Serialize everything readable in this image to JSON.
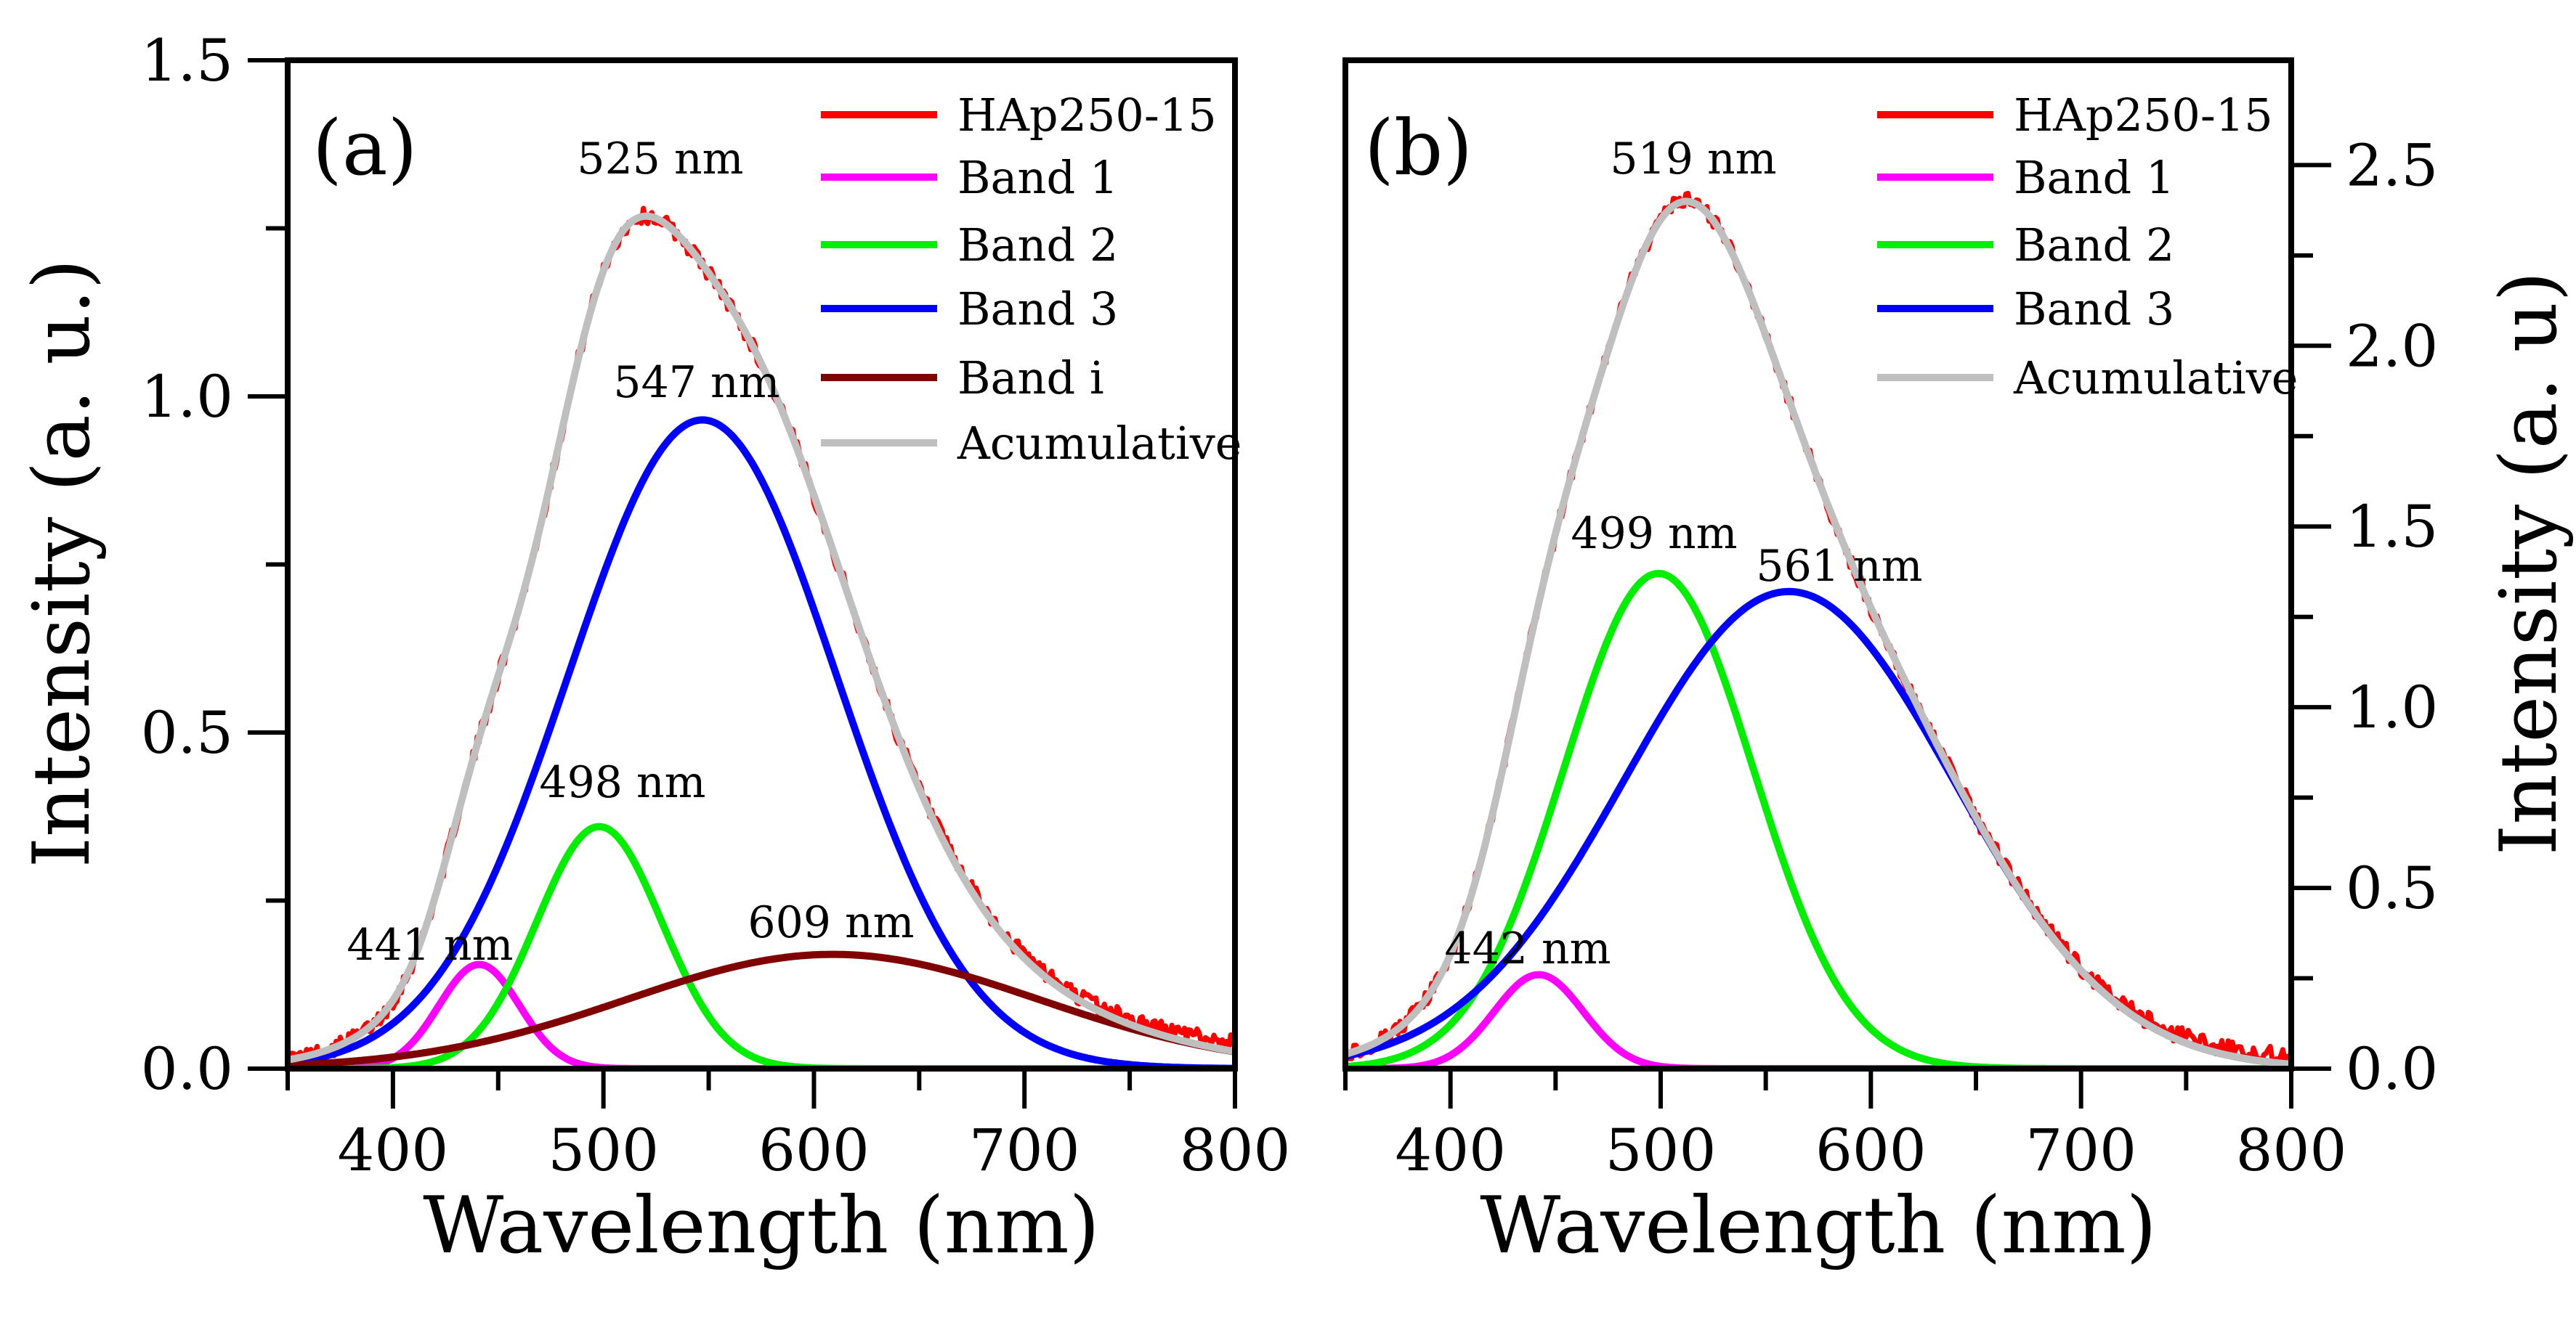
{
  "chart_data": [
    {
      "type": "line",
      "panel_label": "(a)",
      "xlabel": "Wavelength (nm)",
      "ylabel": "Intensity (a. u.)",
      "xlim": [
        350,
        800
      ],
      "ylim": [
        0,
        1.5
      ],
      "x_ticks": [
        "400",
        "500",
        "600",
        "700",
        "800"
      ],
      "y_ticks": [
        "0.0",
        "0.5",
        "1.0",
        "1.5"
      ],
      "y_axis_side": "left",
      "legend_position": "top-right",
      "series": [
        {
          "name": "HAp250-15",
          "color": "#ff0000",
          "kind": "measured"
        },
        {
          "name": "Band 1",
          "color": "#ff00ff",
          "center_nm": 441,
          "amplitude": 0.155,
          "fwhm_nm": 45
        },
        {
          "name": "Band 2",
          "color": "#00ee00",
          "center_nm": 498,
          "amplitude": 0.36,
          "fwhm_nm": 70
        },
        {
          "name": "Band 3",
          "color": "#0000ff",
          "center_nm": 547,
          "amplitude": 0.965,
          "fwhm_nm": 150
        },
        {
          "name": "Band i",
          "color": "#800000",
          "center_nm": 609,
          "amplitude": 0.17,
          "fwhm_nm": 230
        },
        {
          "name": "Acumulative",
          "color": "#bfbfbf",
          "kind": "sum"
        }
      ],
      "annotations": [
        {
          "text": "525 nm",
          "x": 525,
          "y": 1.29
        },
        {
          "text": "547 nm",
          "x": 547,
          "y": 0.965
        },
        {
          "text": "498 nm",
          "x": 498,
          "y": 0.36
        },
        {
          "text": "441 nm",
          "x": 441,
          "y": 0.155
        },
        {
          "text": "609 nm",
          "x": 609,
          "y": 0.17
        }
      ]
    },
    {
      "type": "line",
      "panel_label": "(b)",
      "xlabel": "Wavelength (nm)",
      "ylabel": "Intensity (a. u)",
      "xlim": [
        350,
        800
      ],
      "ylim": [
        0,
        2.79
      ],
      "x_ticks": [
        "400",
        "500",
        "600",
        "700",
        "800"
      ],
      "y_ticks": [
        "0.0",
        "0.5",
        "1.0",
        "1.5",
        "2.0",
        "2.5"
      ],
      "y_axis_side": "right",
      "legend_position": "top-right",
      "series": [
        {
          "name": "HAp250-15",
          "color": "#ff0000",
          "kind": "measured"
        },
        {
          "name": "Band 1",
          "color": "#ff00ff",
          "center_nm": 442,
          "amplitude": 0.26,
          "fwhm_nm": 50
        },
        {
          "name": "Band 2",
          "color": "#00ee00",
          "center_nm": 499,
          "amplitude": 1.37,
          "fwhm_nm": 106
        },
        {
          "name": "Band 3",
          "color": "#0000ff",
          "center_nm": 561,
          "amplitude": 1.32,
          "fwhm_nm": 184
        },
        {
          "name": "Acumulative",
          "color": "#bfbfbf",
          "kind": "sum"
        }
      ],
      "annotations": [
        {
          "text": "519 nm",
          "x": 519,
          "y": 2.38
        },
        {
          "text": "499 nm",
          "x": 499,
          "y": 1.37
        },
        {
          "text": "561 nm",
          "x": 561,
          "y": 1.32
        },
        {
          "text": "442 nm",
          "x": 442,
          "y": 0.26
        }
      ]
    }
  ]
}
